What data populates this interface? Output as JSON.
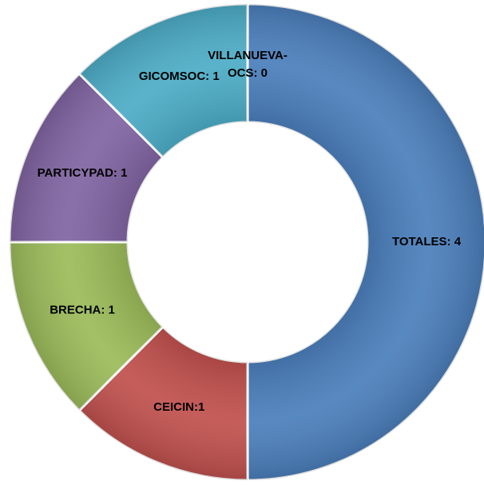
{
  "chart_data": {
    "type": "donut",
    "values": [
      4,
      1,
      1,
      1,
      1,
      0
    ],
    "value_labels": [
      "TOTALES: 4",
      "CEICIN:1",
      "BRECHA: 1",
      "PARTICYPAD: 1",
      "GICOMSOC: 1",
      "VILLANUEVA-OCS: 0"
    ],
    "colors": [
      "#4a7ebb",
      "#c0504d",
      "#9bbb59",
      "#8064a2",
      "#4bacc6",
      "#f79646"
    ]
  }
}
